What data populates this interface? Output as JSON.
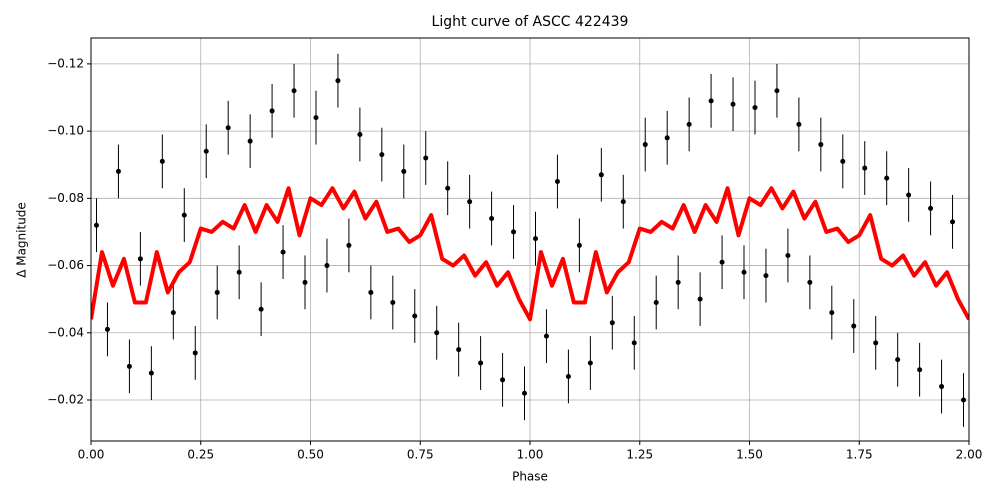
{
  "chart_data": {
    "type": "scatter",
    "title": "Light curve of ASCC 422439",
    "xlabel": "Phase",
    "ylabel": "Δ Magnitude",
    "xlim": [
      0,
      2
    ],
    "ylim": [
      -0.0078,
      -0.1277
    ],
    "grid": true,
    "xticks": [
      {
        "value": 0,
        "label": "0.00"
      },
      {
        "value": 0.25,
        "label": "0.25"
      },
      {
        "value": 0.5,
        "label": "0.50"
      },
      {
        "value": 0.75,
        "label": "0.75"
      },
      {
        "value": 1,
        "label": "1.00"
      },
      {
        "value": 1.25,
        "label": "1.25"
      },
      {
        "value": 1.5,
        "label": "1.50"
      },
      {
        "value": 1.75,
        "label": "1.75"
      },
      {
        "value": 2,
        "label": "2.00"
      }
    ],
    "yticks": [
      {
        "value": -0.02,
        "label": "−0.02"
      },
      {
        "value": -0.04,
        "label": "−0.04"
      },
      {
        "value": -0.06,
        "label": "−0.06"
      },
      {
        "value": -0.08,
        "label": "−0.08"
      },
      {
        "value": -0.1,
        "label": "−0.10"
      },
      {
        "value": -0.12,
        "label": "−0.12"
      }
    ],
    "series": [
      {
        "type": "errorbar",
        "color": "#000000",
        "error": 0.008,
        "x": [
          0.0125,
          0.0375,
          0.0625,
          0.0875,
          0.1125,
          0.1375,
          0.1625,
          0.1875,
          0.2125,
          0.2375,
          0.2625,
          0.2875,
          0.3125,
          0.3375,
          0.3625,
          0.3875,
          0.4125,
          0.4375,
          0.4625,
          0.4875,
          0.5125,
          0.5375,
          0.5625,
          0.5875,
          0.6125,
          0.6375,
          0.6625,
          0.6875,
          0.7125,
          0.7375,
          0.7625,
          0.7875,
          0.8125,
          0.8375,
          0.8625,
          0.8875,
          0.9125,
          0.9375,
          0.9625,
          0.9875,
          1.0125,
          1.0375,
          1.0625,
          1.0875,
          1.1125,
          1.1375,
          1.1625,
          1.1875,
          1.2125,
          1.2375,
          1.2625,
          1.2875,
          1.3125,
          1.3375,
          1.3625,
          1.3875,
          1.4125,
          1.4375,
          1.4625,
          1.4875,
          1.5125,
          1.5375,
          1.5625,
          1.5875,
          1.6125,
          1.6375,
          1.6625,
          1.6875,
          1.7125,
          1.7375,
          1.7625,
          1.7875,
          1.8125,
          1.8375,
          1.8625,
          1.8875,
          1.9125,
          1.9375,
          1.9625,
          1.9875
        ],
        "values": [
          -0.072,
          -0.041,
          -0.088,
          -0.03,
          -0.062,
          -0.028,
          -0.091,
          -0.046,
          -0.075,
          -0.034,
          -0.094,
          -0.052,
          -0.101,
          -0.058,
          -0.097,
          -0.047,
          -0.106,
          -0.064,
          -0.112,
          -0.055,
          -0.104,
          -0.06,
          -0.115,
          -0.066,
          -0.099,
          -0.052,
          -0.093,
          -0.049,
          -0.088,
          -0.045,
          -0.092,
          -0.04,
          -0.083,
          -0.035,
          -0.079,
          -0.031,
          -0.074,
          -0.026,
          -0.07,
          -0.022,
          -0.068,
          -0.039,
          -0.085,
          -0.027,
          -0.066,
          -0.031,
          -0.087,
          -0.043,
          -0.079,
          -0.037,
          -0.096,
          -0.049,
          -0.098,
          -0.055,
          -0.102,
          -0.05,
          -0.109,
          -0.061,
          -0.108,
          -0.058,
          -0.107,
          -0.057,
          -0.112,
          -0.063,
          -0.102,
          -0.055,
          -0.096,
          -0.046,
          -0.091,
          -0.042,
          -0.089,
          -0.037,
          -0.086,
          -0.032,
          -0.081,
          -0.029,
          -0.077,
          -0.024,
          -0.073,
          -0.02
        ]
      },
      {
        "type": "line",
        "color": "#ff0000",
        "x": [
          0,
          0.025,
          0.05,
          0.075,
          0.1,
          0.125,
          0.15,
          0.175,
          0.2,
          0.225,
          0.25,
          0.275,
          0.3,
          0.325,
          0.35,
          0.375,
          0.4,
          0.425,
          0.45,
          0.475,
          0.5,
          0.525,
          0.55,
          0.575,
          0.6,
          0.625,
          0.65,
          0.675,
          0.7,
          0.725,
          0.75,
          0.775,
          0.8,
          0.825,
          0.85,
          0.875,
          0.9,
          0.925,
          0.95,
          0.975,
          1,
          1.025,
          1.05,
          1.075,
          1.1,
          1.125,
          1.15,
          1.175,
          1.2,
          1.225,
          1.25,
          1.275,
          1.3,
          1.325,
          1.35,
          1.375,
          1.4,
          1.425,
          1.45,
          1.475,
          1.5,
          1.525,
          1.55,
          1.575,
          1.6,
          1.625,
          1.65,
          1.675,
          1.7,
          1.725,
          1.75,
          1.775,
          1.8,
          1.825,
          1.85,
          1.875,
          1.9,
          1.925,
          1.95,
          1.975,
          2
        ],
        "values": [
          -0.044,
          -0.064,
          -0.054,
          -0.062,
          -0.049,
          -0.049,
          -0.064,
          -0.052,
          -0.058,
          -0.061,
          -0.071,
          -0.07,
          -0.073,
          -0.071,
          -0.078,
          -0.07,
          -0.078,
          -0.073,
          -0.083,
          -0.069,
          -0.08,
          -0.078,
          -0.083,
          -0.077,
          -0.082,
          -0.074,
          -0.079,
          -0.07,
          -0.071,
          -0.067,
          -0.069,
          -0.075,
          -0.062,
          -0.06,
          -0.063,
          -0.057,
          -0.061,
          -0.054,
          -0.058,
          -0.05,
          -0.044,
          -0.064,
          -0.054,
          -0.062,
          -0.049,
          -0.049,
          -0.064,
          -0.052,
          -0.058,
          -0.061,
          -0.071,
          -0.07,
          -0.073,
          -0.071,
          -0.078,
          -0.07,
          -0.078,
          -0.073,
          -0.083,
          -0.069,
          -0.08,
          -0.078,
          -0.083,
          -0.077,
          -0.082,
          -0.074,
          -0.079,
          -0.07,
          -0.071,
          -0.067,
          -0.069,
          -0.075,
          -0.062,
          -0.06,
          -0.063,
          -0.057,
          -0.061,
          -0.054,
          -0.058,
          -0.05,
          -0.044
        ]
      }
    ]
  }
}
